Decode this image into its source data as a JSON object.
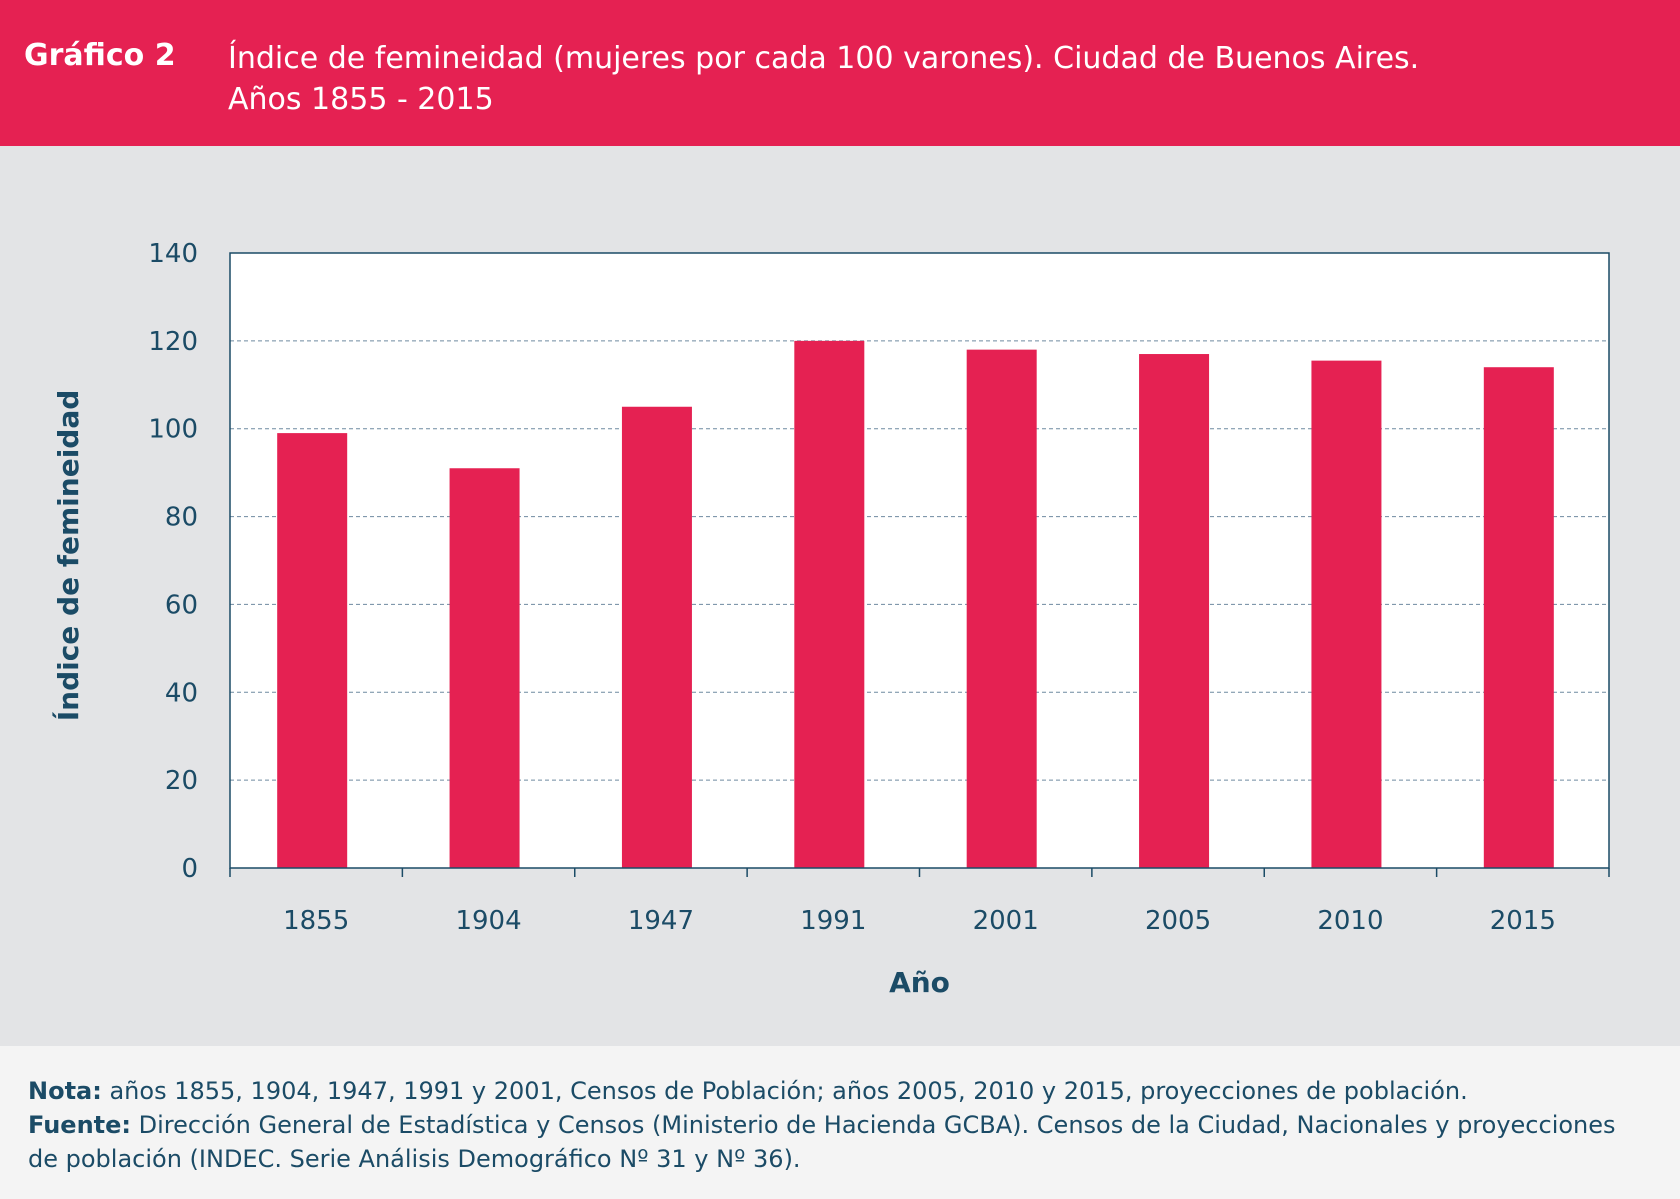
{
  "header": {
    "label": "Gráfico 2",
    "title_line1": "Índice de femineidad (mujeres por cada 100 varones). Ciudad de Buenos Aires.",
    "title_line2": "Años 1855 - 2015"
  },
  "colors": {
    "accent": "#e52152",
    "text": "#1b4b66",
    "panel": "#e3e4e6",
    "plot_bg": "#ffffff"
  },
  "chart_data": {
    "type": "bar",
    "title": "Índice de femineidad (mujeres por cada 100 varones). Ciudad de Buenos Aires. Años 1855 - 2015",
    "xlabel": "Año",
    "ylabel": "Índice de femineidad",
    "categories": [
      "1855",
      "1904",
      "1947",
      "1991",
      "2001",
      "2005",
      "2010",
      "2015"
    ],
    "values": [
      99,
      91,
      105,
      120,
      118,
      117,
      115.5,
      114
    ],
    "ylim": [
      0,
      140
    ],
    "yticks": [
      "0",
      "20",
      "40",
      "60",
      "80",
      "100",
      "120",
      "140"
    ],
    "grid": true
  },
  "footer": {
    "nota_label": "Nota:",
    "nota_text": " años 1855, 1904, 1947, 1991 y 2001, Censos de Población;  años 2005, 2010 y 2015, proyecciones de población.",
    "fuente_label": "Fuente:",
    "fuente_text": " Dirección General de Estadística y Censos (Ministerio de Hacienda GCBA). Censos de la Ciudad, Nacionales y proyecciones",
    "fuente_text2": "de población (INDEC. Serie Análisis Demográfico Nº 31 y Nº 36)."
  }
}
